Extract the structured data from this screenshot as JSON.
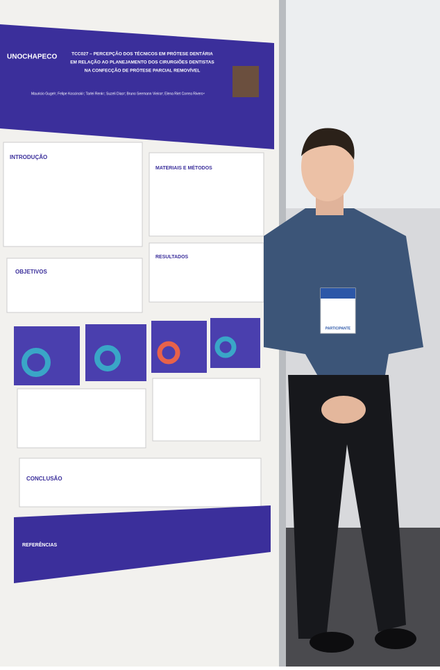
{
  "poster": {
    "logo": "UNOCHAPECO",
    "title_lines": [
      "TCC027 – PERCEPÇÃO DOS TÉCNICOS EM PRÓTESE DENTÁRIA",
      "EM RELAÇÃO AO PLANEJAMENTO DOS CIRURGIÕES DENTISTAS",
      "NA CONFECÇÃO DE PRÓTESE PARCIAL REMOVÍVEL"
    ],
    "authors": "Mauricio Gugel¹; Felipe Koscinski¹; Tarlei Renk¹; Suzeli Dias²; Bruno Seemann Vieira³; Elena Riet Correa Rivero⁴",
    "sections": [
      "INTRODUÇÃO",
      "MATERIAIS E MÉTODOS",
      "RESULTADOS",
      "OBJETIVOS",
      "CONCLUSÃO",
      "REFERÊNCIAS"
    ]
  },
  "badge": "PARTICIPANTE"
}
